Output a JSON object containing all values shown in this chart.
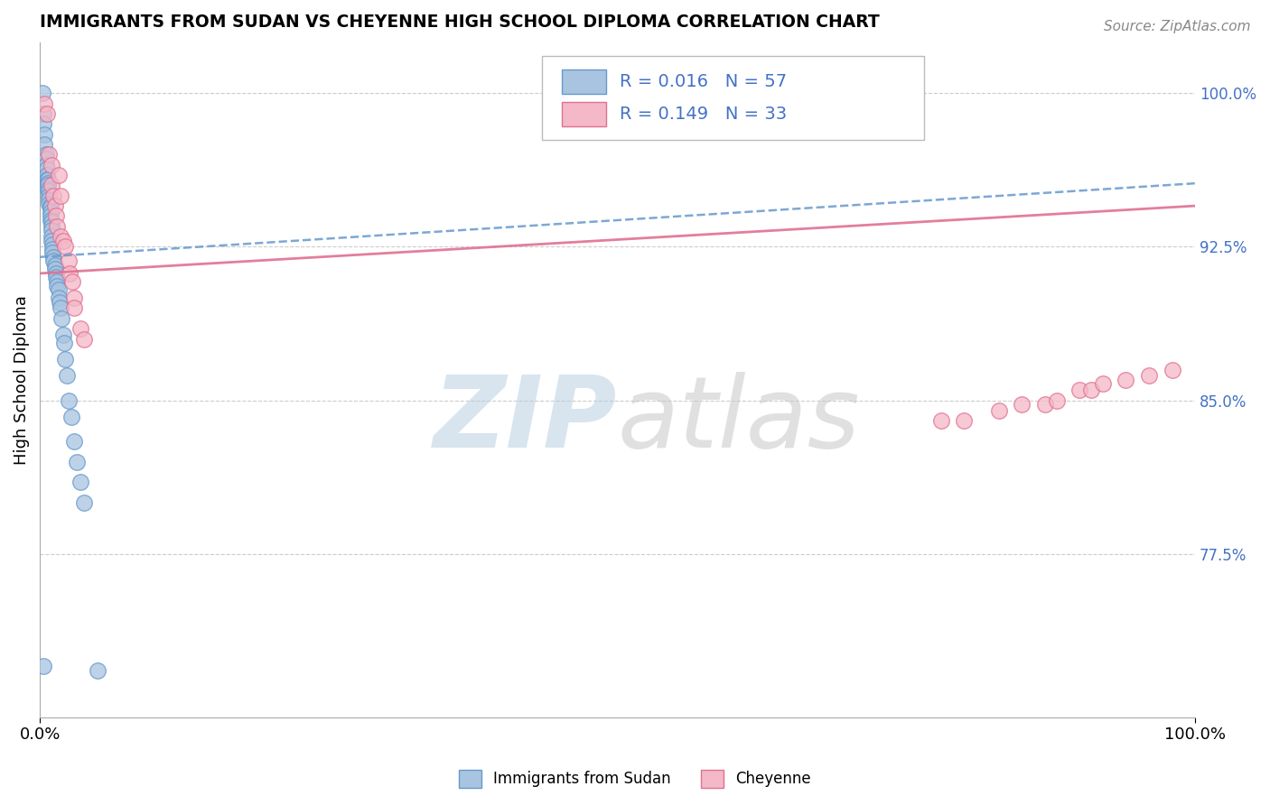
{
  "title": "IMMIGRANTS FROM SUDAN VS CHEYENNE HIGH SCHOOL DIPLOMA CORRELATION CHART",
  "source": "Source: ZipAtlas.com",
  "xlabel_bottom_left": "0.0%",
  "xlabel_bottom_right": "100.0%",
  "ylabel": "High School Diploma",
  "right_ytick_labels": [
    "100.0%",
    "92.5%",
    "85.0%",
    "77.5%"
  ],
  "right_ytick_values": [
    1.0,
    0.925,
    0.85,
    0.775
  ],
  "blue_color": "#a8c4e0",
  "pink_color": "#f4b8c8",
  "blue_edge": "#6699cc",
  "pink_edge": "#e07090",
  "blue_R": 0.016,
  "blue_N": 57,
  "pink_R": 0.149,
  "pink_N": 33,
  "xmin": 0.0,
  "xmax": 1.0,
  "ymin": 0.695,
  "ymax": 1.025,
  "blue_trend_start": 0.92,
  "blue_trend_end": 0.956,
  "pink_trend_start": 0.912,
  "pink_trend_end": 0.945,
  "blue_scatter_x": [
    0.002,
    0.003,
    0.003,
    0.004,
    0.004,
    0.005,
    0.005,
    0.005,
    0.006,
    0.006,
    0.006,
    0.007,
    0.007,
    0.007,
    0.007,
    0.008,
    0.008,
    0.008,
    0.008,
    0.009,
    0.009,
    0.009,
    0.009,
    0.009,
    0.01,
    0.01,
    0.01,
    0.01,
    0.01,
    0.011,
    0.011,
    0.011,
    0.012,
    0.012,
    0.013,
    0.013,
    0.014,
    0.014,
    0.015,
    0.015,
    0.016,
    0.016,
    0.017,
    0.018,
    0.019,
    0.02,
    0.021,
    0.022,
    0.023,
    0.025,
    0.027,
    0.03,
    0.032,
    0.035,
    0.038,
    0.003,
    0.05
  ],
  "blue_scatter_y": [
    1.0,
    0.99,
    0.985,
    0.98,
    0.975,
    0.97,
    0.968,
    0.965,
    0.963,
    0.96,
    0.958,
    0.958,
    0.956,
    0.955,
    0.953,
    0.952,
    0.95,
    0.948,
    0.946,
    0.945,
    0.944,
    0.942,
    0.94,
    0.938,
    0.937,
    0.935,
    0.933,
    0.93,
    0.928,
    0.926,
    0.924,
    0.922,
    0.92,
    0.918,
    0.916,
    0.914,
    0.912,
    0.91,
    0.908,
    0.906,
    0.904,
    0.9,
    0.898,
    0.895,
    0.89,
    0.882,
    0.878,
    0.87,
    0.862,
    0.85,
    0.842,
    0.83,
    0.82,
    0.81,
    0.8,
    0.72,
    0.718
  ],
  "pink_scatter_x": [
    0.004,
    0.006,
    0.008,
    0.01,
    0.01,
    0.012,
    0.013,
    0.014,
    0.015,
    0.016,
    0.018,
    0.018,
    0.02,
    0.022,
    0.025,
    0.026,
    0.028,
    0.03,
    0.03,
    0.035,
    0.038,
    0.78,
    0.8,
    0.83,
    0.85,
    0.87,
    0.88,
    0.9,
    0.91,
    0.92,
    0.94,
    0.96,
    0.98
  ],
  "pink_scatter_y": [
    0.995,
    0.99,
    0.97,
    0.965,
    0.955,
    0.95,
    0.945,
    0.94,
    0.935,
    0.96,
    0.95,
    0.93,
    0.928,
    0.925,
    0.918,
    0.912,
    0.908,
    0.9,
    0.895,
    0.885,
    0.88,
    0.84,
    0.84,
    0.845,
    0.848,
    0.848,
    0.85,
    0.855,
    0.855,
    0.858,
    0.86,
    0.862,
    0.865
  ]
}
